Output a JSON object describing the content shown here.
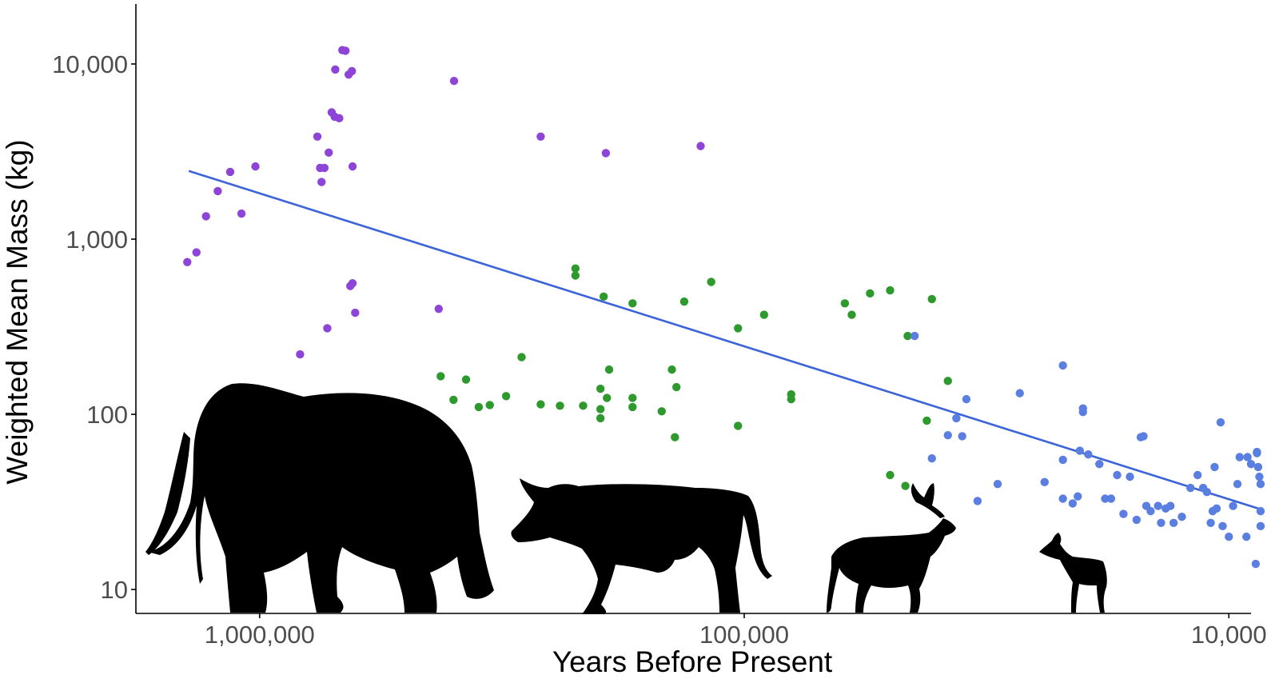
{
  "chart_data": {
    "type": "scatter",
    "title": "",
    "xlabel": "Years Before Present",
    "ylabel": "Weighted Mean Mass (kg)",
    "x_scale": "log",
    "x_reversed": true,
    "y_scale": "log",
    "xlim": [
      1800000,
      9000
    ],
    "ylim": [
      7.3,
      22000
    ],
    "x_ticks": [
      {
        "value": 1000000,
        "label": "1,000,000"
      },
      {
        "value": 100000,
        "label": "100,000"
      },
      {
        "value": 10000,
        "label": "10,000"
      }
    ],
    "y_ticks": [
      {
        "value": 10,
        "label": "10"
      },
      {
        "value": 100,
        "label": "100"
      },
      {
        "value": 1000,
        "label": "1,000"
      },
      {
        "value": 10000,
        "label": "10,000"
      }
    ],
    "grid": false,
    "legend": "none",
    "series": [
      {
        "color": "#8e44d6",
        "points": [
          [
            1410000,
            740
          ],
          [
            1350000,
            840
          ],
          [
            1290000,
            1350
          ],
          [
            1220000,
            1880
          ],
          [
            1150000,
            2420
          ],
          [
            1090000,
            1400
          ],
          [
            1020000,
            2600
          ],
          [
            825000,
            220
          ],
          [
            760000,
            3850
          ],
          [
            750000,
            2550
          ],
          [
            745000,
            2120
          ],
          [
            735000,
            2550
          ],
          [
            725000,
            310
          ],
          [
            720000,
            3120
          ],
          [
            710000,
            5300
          ],
          [
            700000,
            5000
          ],
          [
            698000,
            9300
          ],
          [
            685000,
            4900
          ],
          [
            675000,
            12000
          ],
          [
            665000,
            11900
          ],
          [
            655000,
            8700
          ],
          [
            645000,
            9100
          ],
          [
            650000,
            540
          ],
          [
            643000,
            2600
          ],
          [
            643000,
            560
          ],
          [
            635000,
            380
          ],
          [
            427000,
            400
          ],
          [
            397000,
            8000
          ],
          [
            263000,
            3850
          ],
          [
            193000,
            3100
          ],
          [
            123000,
            3400
          ]
        ]
      },
      {
        "color": "#2e9a2e",
        "points": [
          [
            423000,
            165
          ],
          [
            398000,
            121
          ],
          [
            375000,
            158
          ],
          [
            353000,
            110
          ],
          [
            335000,
            113
          ],
          [
            310000,
            127
          ],
          [
            288000,
            212
          ],
          [
            263000,
            114
          ],
          [
            240000,
            112
          ],
          [
            223000,
            680
          ],
          [
            223000,
            620
          ],
          [
            215000,
            112
          ],
          [
            198000,
            140
          ],
          [
            198000,
            107
          ],
          [
            198000,
            95
          ],
          [
            195000,
            470
          ],
          [
            192000,
            124
          ],
          [
            190000,
            180
          ],
          [
            170000,
            430
          ],
          [
            170000,
            110
          ],
          [
            170000,
            124
          ],
          [
            148000,
            104
          ],
          [
            141000,
            180
          ],
          [
            139000,
            74
          ],
          [
            138000,
            143
          ],
          [
            133000,
            440
          ],
          [
            117000,
            570
          ],
          [
            103000,
            310
          ],
          [
            103000,
            86
          ],
          [
            91000,
            370
          ],
          [
            80000,
            130
          ],
          [
            80000,
            122
          ],
          [
            62000,
            430
          ],
          [
            60000,
            370
          ],
          [
            55000,
            490
          ],
          [
            50000,
            45
          ],
          [
            50000,
            510
          ],
          [
            46500,
            39
          ],
          [
            46000,
            280
          ],
          [
            42000,
            92
          ],
          [
            41000,
            455
          ],
          [
            38000,
            155
          ]
        ]
      },
      {
        "color": "#5b7fe0",
        "points": [
          [
            44500,
            280
          ],
          [
            41000,
            56
          ],
          [
            38000,
            76
          ],
          [
            36500,
            95
          ],
          [
            35500,
            75
          ],
          [
            34800,
            122
          ],
          [
            33000,
            32
          ],
          [
            30000,
            40
          ],
          [
            27000,
            132
          ],
          [
            24000,
            41
          ],
          [
            22000,
            190
          ],
          [
            22000,
            33
          ],
          [
            22000,
            55
          ],
          [
            21000,
            31
          ],
          [
            20500,
            34
          ],
          [
            20300,
            62
          ],
          [
            20000,
            103
          ],
          [
            20000,
            108
          ],
          [
            19500,
            59
          ],
          [
            18500,
            52
          ],
          [
            18000,
            33
          ],
          [
            17500,
            33
          ],
          [
            17000,
            45
          ],
          [
            16500,
            27
          ],
          [
            16000,
            44
          ],
          [
            15500,
            25
          ],
          [
            15200,
            74
          ],
          [
            15000,
            75
          ],
          [
            14800,
            30
          ],
          [
            14500,
            28
          ],
          [
            14000,
            30
          ],
          [
            13800,
            24
          ],
          [
            13500,
            29
          ],
          [
            13200,
            30
          ],
          [
            13000,
            24
          ],
          [
            12500,
            26
          ],
          [
            12000,
            38
          ],
          [
            11600,
            45
          ],
          [
            11300,
            38
          ],
          [
            11100,
            36
          ],
          [
            10900,
            24
          ],
          [
            10800,
            28
          ],
          [
            10700,
            50
          ],
          [
            10600,
            29
          ],
          [
            10400,
            90
          ],
          [
            10300,
            23
          ],
          [
            10000,
            20
          ],
          [
            9800,
            30
          ],
          [
            9600,
            40
          ],
          [
            9500,
            57
          ],
          [
            9200,
            20
          ],
          [
            9150,
            57
          ],
          [
            9000,
            52
          ],
          [
            8800,
            14
          ],
          [
            8750,
            61
          ],
          [
            8750,
            60
          ],
          [
            8700,
            50
          ],
          [
            8650,
            44
          ],
          [
            8600,
            40
          ],
          [
            8600,
            28
          ],
          [
            8600,
            23
          ]
        ]
      }
    ],
    "trend_line": {
      "color": "#3c64d8",
      "from": [
        1400000,
        2450
      ],
      "to": [
        8700,
        29
      ]
    },
    "silhouettes": [
      "elephant",
      "bison",
      "deer",
      "gazelle"
    ]
  }
}
